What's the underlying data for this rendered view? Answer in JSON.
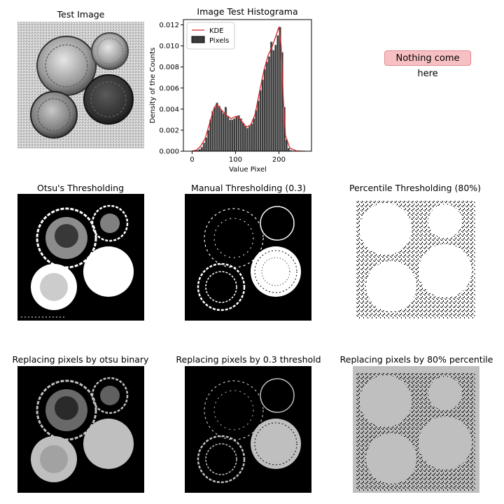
{
  "panels": {
    "test_image": "Test Image",
    "otsu": "Otsu's Thresholding",
    "manual": "Manual Thresholding (0.3)",
    "percentile": "Percentile Thresholding (80%)",
    "replace_otsu": "Replacing  pixels by otsu binary",
    "replace_manual": "Replacing  pixels by 0.3 threshold",
    "replace_percentile": "Replacing  pixels by 80% percentile"
  },
  "placeholder_text": "Nothing come here",
  "colors": {
    "kde": "#d62728",
    "bar_face": "#3b3b3b",
    "bar_edge": "#bfbfbf",
    "replace_gray": "#bfbfbf",
    "note_bg": "#f7c1c4"
  },
  "chart_data": {
    "type": "bar",
    "title": "Image Test Histograma",
    "xlabel": "Value Pixel",
    "ylabel": "Density of the Counts",
    "xlim": [
      -20,
      275
    ],
    "ylim": [
      0,
      0.0125
    ],
    "xticks": [
      0,
      100,
      200
    ],
    "yticks": [
      0.0,
      0.002,
      0.004,
      0.006,
      0.008,
      0.01,
      0.012
    ],
    "ytick_labels": [
      "0.000",
      "0.002",
      "0.004",
      "0.006",
      "0.008",
      "0.010",
      "0.012"
    ],
    "legend": {
      "position": "top-left",
      "entries": [
        "KDE",
        "Pixels"
      ]
    },
    "bin_width": 5,
    "bins": [
      5,
      10,
      15,
      20,
      25,
      30,
      35,
      40,
      45,
      50,
      55,
      60,
      65,
      70,
      75,
      80,
      85,
      90,
      95,
      100,
      105,
      110,
      115,
      120,
      125,
      130,
      135,
      140,
      145,
      150,
      155,
      160,
      165,
      170,
      175,
      180,
      185,
      190,
      195,
      200,
      205,
      210,
      215,
      220,
      225,
      230,
      235,
      240,
      245,
      250
    ],
    "values": [
      5e-05,
      0.0001,
      0.0002,
      0.0004,
      0.0008,
      0.0013,
      0.002,
      0.003,
      0.0038,
      0.0042,
      0.0046,
      0.0043,
      0.0039,
      0.0036,
      0.0042,
      0.0033,
      0.003,
      0.003,
      0.0031,
      0.0033,
      0.0034,
      0.0031,
      0.0027,
      0.0024,
      0.0022,
      0.0024,
      0.0026,
      0.0031,
      0.0039,
      0.0048,
      0.0058,
      0.0068,
      0.0078,
      0.0085,
      0.009,
      0.0104,
      0.0096,
      0.0101,
      0.011,
      0.0118,
      0.0094,
      0.0042,
      0.0011,
      0.0003,
      0.0001,
      5e-05,
      0,
      0,
      0,
      0
    ],
    "kde": [
      [
        0,
        2e-05
      ],
      [
        10,
        0.0001
      ],
      [
        20,
        0.0005
      ],
      [
        30,
        0.0012
      ],
      [
        40,
        0.0026
      ],
      [
        50,
        0.004
      ],
      [
        55,
        0.0044
      ],
      [
        60,
        0.0043
      ],
      [
        70,
        0.0038
      ],
      [
        80,
        0.0034
      ],
      [
        90,
        0.0031
      ],
      [
        100,
        0.0033
      ],
      [
        105,
        0.0033
      ],
      [
        115,
        0.0028
      ],
      [
        125,
        0.0023
      ],
      [
        135,
        0.0025
      ],
      [
        145,
        0.0035
      ],
      [
        155,
        0.0056
      ],
      [
        165,
        0.0076
      ],
      [
        175,
        0.0091
      ],
      [
        185,
        0.01
      ],
      [
        195,
        0.0112
      ],
      [
        200,
        0.0118
      ],
      [
        205,
        0.01
      ],
      [
        210,
        0.005
      ],
      [
        215,
        0.0015
      ],
      [
        225,
        0.0003
      ],
      [
        240,
        3e-05
      ],
      [
        260,
        0
      ]
    ]
  }
}
